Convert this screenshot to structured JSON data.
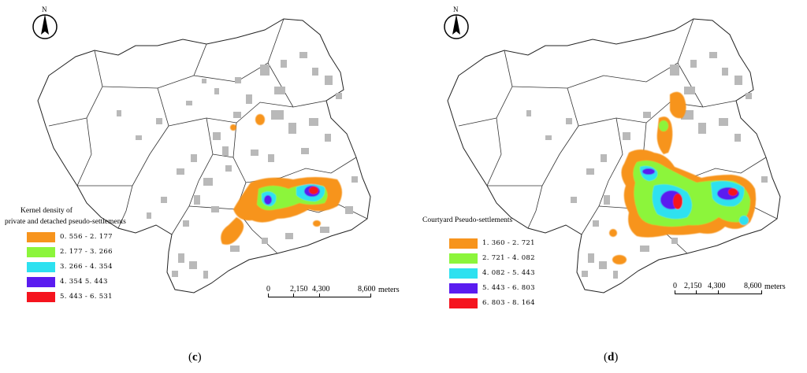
{
  "panels": {
    "c": {
      "caption": "c",
      "north_label": "N",
      "legend": {
        "title_line1": "Kernel density of",
        "title_line2": "private and detached pseudo-settlements",
        "classes": [
          {
            "range": "0. 556 - 2. 177",
            "color": "#f7941d"
          },
          {
            "range": "2. 177 - 3. 266",
            "color": "#8cf53b"
          },
          {
            "range": "3. 266 - 4. 354",
            "color": "#2de1f0"
          },
          {
            "range": "4. 354   5. 443",
            "color": "#5a1cf0"
          },
          {
            "range": "5. 443 - 6. 531",
            "color": "#f5141e"
          }
        ]
      },
      "scale": {
        "ticks": [
          "0",
          "2,150",
          "4,300",
          "8,600"
        ],
        "unit": "meters"
      }
    },
    "d": {
      "caption": "d",
      "north_label": "N",
      "legend": {
        "title_line1": "Courtyard Pseudo-settlements",
        "title_line2": "",
        "classes": [
          {
            "range": "1. 360 - 2. 721",
            "color": "#f7941d"
          },
          {
            "range": "2. 721 - 4. 082",
            "color": "#8cf53b"
          },
          {
            "range": "4. 082 - 5. 443",
            "color": "#2de1f0"
          },
          {
            "range": "5. 443 - 6. 803",
            "color": "#5a1cf0"
          },
          {
            "range": "6. 803 - 8. 164",
            "color": "#f5141e"
          }
        ]
      },
      "scale": {
        "ticks": [
          "0",
          "2,150",
          "4,300",
          "8,600"
        ],
        "unit": "meters"
      }
    }
  }
}
